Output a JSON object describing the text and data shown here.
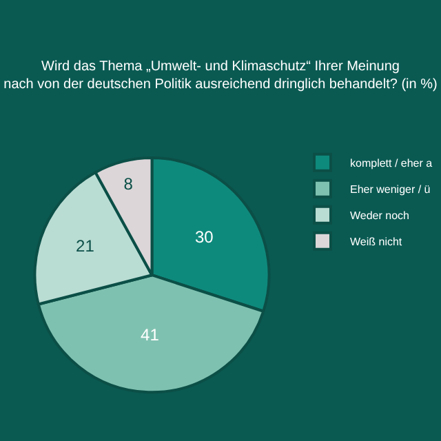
{
  "chart_data": {
    "type": "pie",
    "title": "Wird das Thema „Umwelt- und Klimaschutz“ Ihrer Meinung nach von der deutschen Politik ausreichend dringlich behandelt? (in %)",
    "categories": [
      "komplett / eher a",
      "Eher weniger / ü",
      "Weder noch",
      "Weiß nicht"
    ],
    "values": [
      30,
      41,
      21,
      8
    ],
    "colors": [
      "#0e8a7c",
      "#7fc1b0",
      "#b9dcd3",
      "#dcd6d8"
    ],
    "data_labels": true,
    "legend": "right"
  }
}
